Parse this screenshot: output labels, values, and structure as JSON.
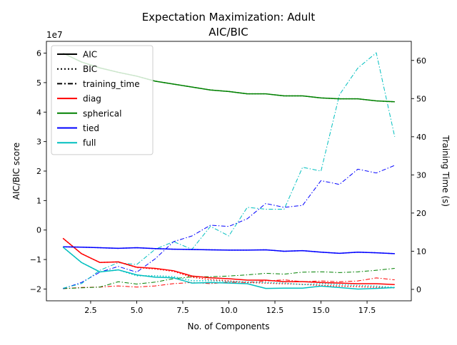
{
  "chart_data": {
    "type": "line",
    "title": "Expectation Maximization: Adult",
    "subtitle": "AIC/BIC",
    "xlabel": "No. of Components",
    "ylabel_left": "AIC/BIC score",
    "ylabel_right": "Training Time (s)",
    "left_offset_label": "1e7",
    "xlim": [
      0.1,
      19.9
    ],
    "ylim_left": [
      -2.4,
      6.4
    ],
    "ylim_right": [
      -3,
      65
    ],
    "x_ticks": [
      2.5,
      5.0,
      7.5,
      10.0,
      12.5,
      15.0,
      17.5
    ],
    "x_tick_labels": [
      "2.5",
      "5.0",
      "7.5",
      "10.0",
      "12.5",
      "15.0",
      "17.5"
    ],
    "left_ticks": [
      -2,
      -1,
      0,
      1,
      2,
      3,
      4,
      5,
      6
    ],
    "left_tick_labels": [
      "−2",
      "−1",
      "0",
      "1",
      "2",
      "3",
      "4",
      "5",
      "6"
    ],
    "right_ticks": [
      0,
      10,
      20,
      30,
      40,
      50,
      60
    ],
    "right_tick_labels": [
      "0",
      "10",
      "20",
      "30",
      "40",
      "50",
      "60"
    ],
    "grid": false,
    "legend_placement": "top-left",
    "legend": [
      {
        "label": "AIC",
        "style": "solid",
        "color": "#000000"
      },
      {
        "label": "BIC",
        "style": "dotted",
        "color": "#000000"
      },
      {
        "label": "training_time",
        "style": "dashdot",
        "color": "#000000"
      },
      {
        "label": "diag",
        "style": "solid",
        "color": "#ff0000"
      },
      {
        "label": "spherical",
        "style": "solid",
        "color": "#008000"
      },
      {
        "label": "tied",
        "style": "solid",
        "color": "#0000ff"
      },
      {
        "label": "full",
        "style": "solid",
        "color": "#00bfbf"
      }
    ],
    "x": [
      1,
      2,
      3,
      4,
      5,
      6,
      7,
      8,
      9,
      10,
      11,
      12,
      13,
      14,
      15,
      16,
      17,
      18,
      19
    ],
    "series": [
      {
        "name": "diag",
        "metric": "AIC",
        "axis": "left",
        "color": "#ff0000",
        "style": "solid",
        "width": 1.5,
        "values": [
          -0.28,
          -0.8,
          -1.1,
          -1.08,
          -1.26,
          -1.3,
          -1.38,
          -1.56,
          -1.62,
          -1.65,
          -1.7,
          -1.7,
          -1.75,
          -1.75,
          -1.78,
          -1.8,
          -1.82,
          -1.82,
          -1.85
        ]
      },
      {
        "name": "diag",
        "metric": "BIC",
        "axis": "left",
        "color": "#ff0000",
        "style": "dotted",
        "width": 1.5,
        "values": [
          -0.28,
          -0.8,
          -1.1,
          -1.08,
          -1.27,
          -1.32,
          -1.4,
          -1.6,
          -1.68,
          -1.72,
          -1.78,
          -1.8,
          -1.82,
          -1.84,
          -1.88,
          -1.9,
          -1.92,
          -1.94,
          -1.96
        ]
      },
      {
        "name": "diag",
        "metric": "training_time",
        "axis": "right",
        "color": "#ff0000",
        "style": "dashdot",
        "width": 1.0,
        "values": [
          0.2,
          0.5,
          0.6,
          0.9,
          0.6,
          0.9,
          1.5,
          1.8,
          1.5,
          1.9,
          1.8,
          2.2,
          2.5,
          2.0,
          2.2,
          2.0,
          2.2,
          3.0,
          2.5
        ]
      },
      {
        "name": "spherical",
        "metric": "AIC",
        "axis": "left",
        "color": "#008000",
        "style": "solid",
        "width": 1.5,
        "values": [
          6.0,
          5.7,
          5.5,
          5.35,
          5.22,
          5.05,
          4.95,
          4.85,
          4.75,
          4.7,
          4.62,
          4.62,
          4.55,
          4.55,
          4.48,
          4.45,
          4.45,
          4.38,
          4.35
        ]
      },
      {
        "name": "spherical",
        "metric": "BIC",
        "axis": "left",
        "color": "#008000",
        "style": "dotted",
        "width": 1.5,
        "values": [
          6.0,
          5.7,
          5.5,
          5.35,
          5.22,
          5.05,
          4.95,
          4.85,
          4.75,
          4.7,
          4.62,
          4.62,
          4.55,
          4.55,
          4.48,
          4.45,
          4.45,
          4.38,
          4.35
        ]
      },
      {
        "name": "spherical",
        "metric": "training_time",
        "axis": "right",
        "color": "#008000",
        "style": "dashdot",
        "width": 1.0,
        "values": [
          0.2,
          0.4,
          0.6,
          2.0,
          1.4,
          1.9,
          2.8,
          3.3,
          3.3,
          3.5,
          3.8,
          4.2,
          4.0,
          4.5,
          4.6,
          4.4,
          4.6,
          5.0,
          5.5
        ]
      },
      {
        "name": "tied",
        "metric": "AIC",
        "axis": "left",
        "color": "#0000ff",
        "style": "solid",
        "width": 1.5,
        "values": [
          -0.57,
          -0.58,
          -0.6,
          -0.62,
          -0.6,
          -0.63,
          -0.65,
          -0.66,
          -0.67,
          -0.68,
          -0.68,
          -0.67,
          -0.72,
          -0.7,
          -0.75,
          -0.79,
          -0.75,
          -0.77,
          -0.8
        ]
      },
      {
        "name": "tied",
        "metric": "BIC",
        "axis": "left",
        "color": "#0000ff",
        "style": "dotted",
        "width": 1.5,
        "values": [
          -0.57,
          -0.58,
          -0.6,
          -0.62,
          -0.6,
          -0.63,
          -0.65,
          -0.66,
          -0.67,
          -0.68,
          -0.68,
          -0.67,
          -0.72,
          -0.7,
          -0.75,
          -0.79,
          -0.75,
          -0.77,
          -0.8
        ]
      },
      {
        "name": "tied",
        "metric": "training_time",
        "axis": "right",
        "color": "#0000ff",
        "style": "dashdot",
        "width": 1.0,
        "values": [
          0.2,
          1.8,
          4.5,
          6.0,
          4.5,
          8.0,
          12.5,
          14.0,
          16.8,
          16.5,
          18.5,
          22.5,
          21.5,
          22.0,
          28.5,
          27.5,
          31.5,
          30.5,
          32.5
        ]
      },
      {
        "name": "full",
        "metric": "AIC",
        "axis": "left",
        "color": "#00bfbf",
        "style": "solid",
        "width": 1.5,
        "values": [
          -0.58,
          -1.1,
          -1.42,
          -1.35,
          -1.52,
          -1.6,
          -1.62,
          -1.8,
          -1.78,
          -1.8,
          -1.82,
          -1.98,
          -1.97,
          -1.97,
          -1.9,
          -1.95,
          -2.0,
          -1.98,
          -1.95
        ]
      },
      {
        "name": "full",
        "metric": "BIC",
        "axis": "left",
        "color": "#00bfbf",
        "style": "dotted",
        "width": 1.5,
        "values": [
          -0.58,
          -1.1,
          -1.42,
          -1.35,
          -1.55,
          -1.55,
          -1.58,
          -1.72,
          -1.72,
          -1.75,
          -1.76,
          -1.78,
          -1.8,
          -1.85,
          -1.82,
          -1.85,
          -1.88,
          -1.9,
          -1.95
        ]
      },
      {
        "name": "full",
        "metric": "training_time",
        "axis": "right",
        "color": "#00bfbf",
        "style": "dashdot",
        "width": 1.0,
        "values": [
          0.3,
          1.5,
          5.0,
          7.0,
          6.5,
          10.5,
          12.5,
          10.5,
          16.5,
          14.0,
          21.5,
          21.0,
          21.0,
          32.0,
          31.0,
          51.0,
          58.0,
          62.0,
          40.0
        ]
      }
    ]
  }
}
